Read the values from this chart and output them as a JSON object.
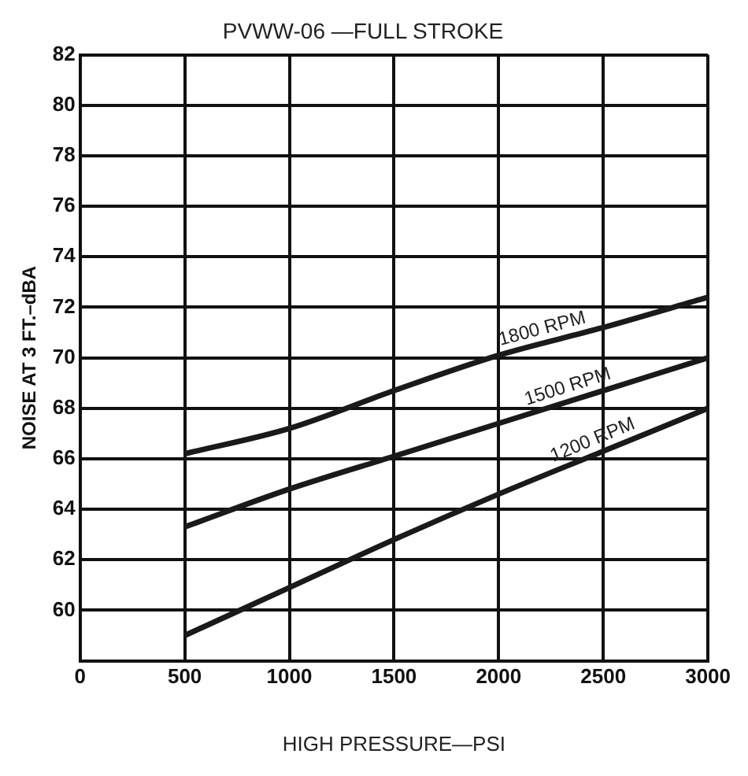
{
  "chart_data": {
    "type": "line",
    "title": "PVWW-06 —FULL STROKE",
    "xlabel": "HIGH PRESSURE—PSI",
    "ylabel": "NOISE AT 3 FT.–dBA",
    "x": [
      500,
      1000,
      1500,
      2000,
      2500,
      3000
    ],
    "series": [
      {
        "name": "1800 RPM",
        "color": "#1a1a1a",
        "values": [
          66.2,
          67.2,
          68.7,
          70.1,
          71.2,
          72.4
        ]
      },
      {
        "name": "1500 RPM",
        "color": "#1a1a1a",
        "values": [
          63.3,
          64.8,
          66.1,
          67.4,
          68.7,
          70
        ]
      },
      {
        "name": "1200 RPM",
        "color": "#1a1a1a",
        "values": [
          59,
          60.9,
          62.8,
          64.6,
          66.3,
          68
        ]
      }
    ],
    "xlim": [
      0,
      3000
    ],
    "xticks": [
      0,
      500,
      {
        "value": 1000,
        "label": "1000"
      },
      {
        "value": 1500,
        "label": "1500"
      },
      {
        "value": 2000,
        "label": "2000"
      },
      {
        "value": 2500,
        "label": "2500"
      },
      {
        "value": 3000,
        "label": "3000"
      }
    ],
    "ylim": [
      58,
      82
    ],
    "yticks": [
      60,
      62,
      64,
      66,
      68,
      70,
      72,
      74,
      76,
      78,
      80,
      82
    ],
    "grid": true,
    "legend": false,
    "marker": "none",
    "line_style": "solid"
  }
}
